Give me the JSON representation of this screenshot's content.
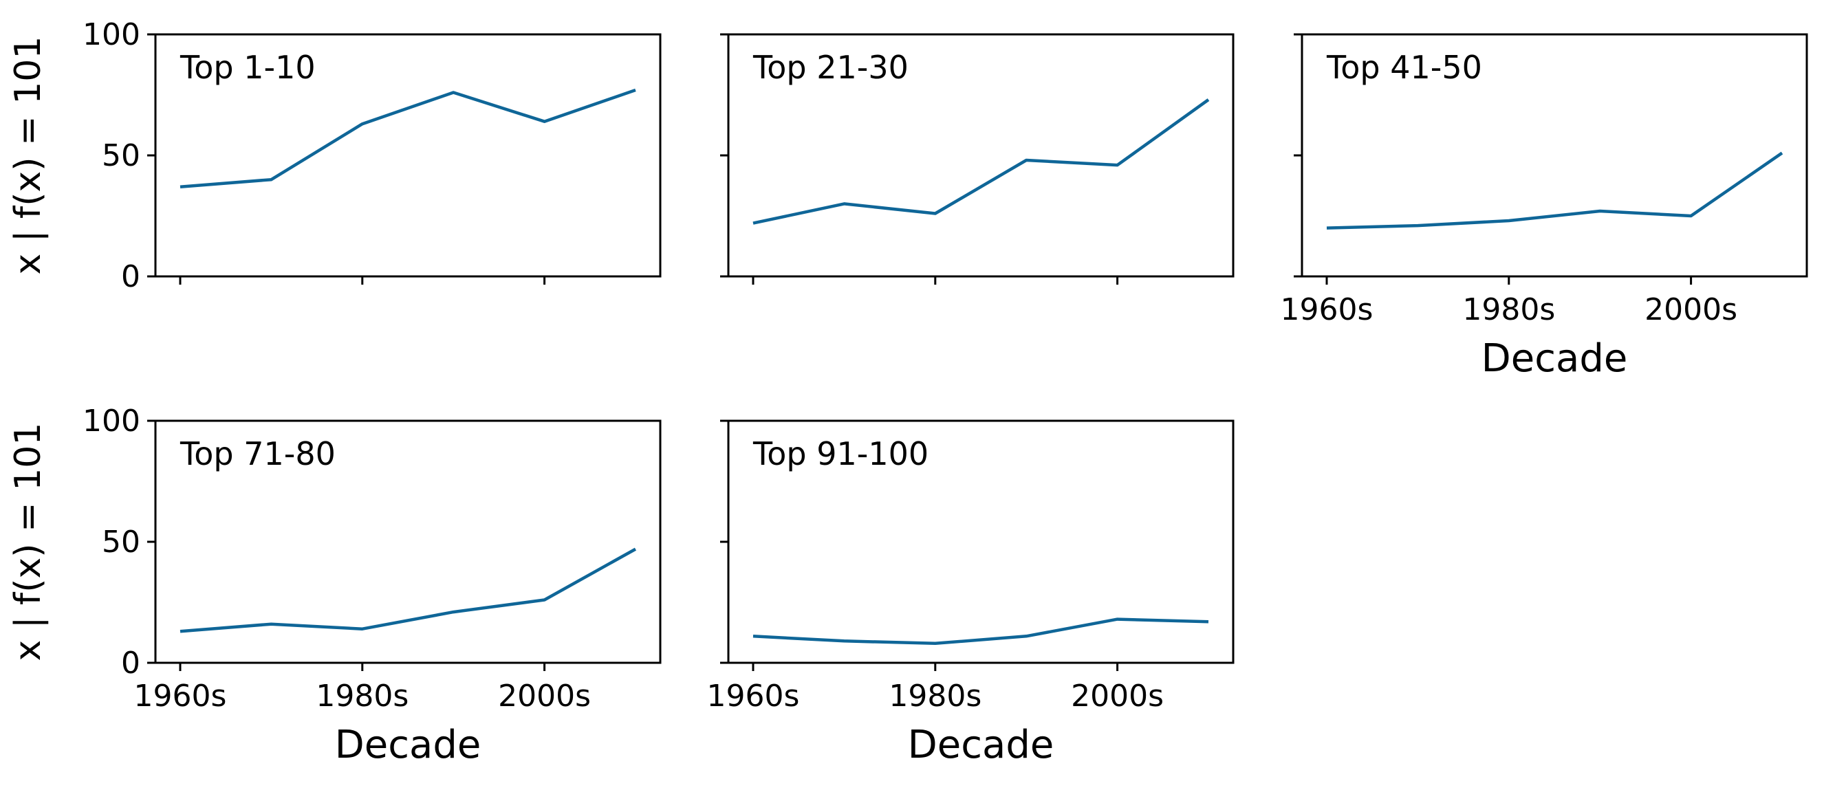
{
  "chart_data": {
    "type": "line",
    "layout": "small-multiples",
    "colors": {
      "line": "#0f6698",
      "axis": "#000000",
      "background": "#ffffff"
    },
    "x": [
      "1960s",
      "1970s",
      "1980s",
      "1990s",
      "2000s",
      "2010s"
    ],
    "xticks": [
      "1960s",
      "1980s",
      "2000s"
    ],
    "ylim": [
      0,
      100
    ],
    "yticks": [
      0,
      50,
      100
    ],
    "xlabel": "Decade",
    "ylabel": "x | f(x) = 101",
    "grid": false,
    "panels": [
      {
        "title": "Top 1-10",
        "values": [
          37,
          40,
          63,
          76,
          64,
          77
        ]
      },
      {
        "title": "Top 21-30",
        "values": [
          22,
          30,
          26,
          48,
          46,
          73
        ]
      },
      {
        "title": "Top 41-50",
        "values": [
          20,
          21,
          23,
          27,
          25,
          51
        ]
      },
      {
        "title": "Top 71-80",
        "values": [
          13,
          16,
          14,
          21,
          26,
          47
        ]
      },
      {
        "title": "Top 91-100",
        "values": [
          11,
          9,
          8,
          11,
          18,
          17
        ]
      }
    ]
  }
}
